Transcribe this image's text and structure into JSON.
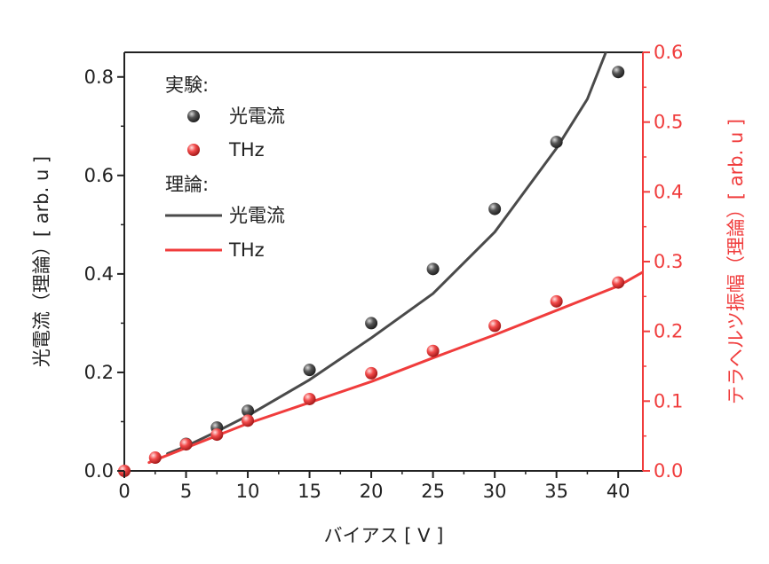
{
  "chart_data": {
    "type": "scatter+line",
    "x_axis": {
      "label": "バイアス [ V ]",
      "range": [
        0,
        42
      ],
      "ticks": [
        0,
        5,
        10,
        15,
        20,
        25,
        30,
        35,
        40
      ],
      "tick_labels": [
        "0",
        "5",
        "10",
        "15",
        "20",
        "25",
        "30",
        "35",
        "40"
      ]
    },
    "y_axis_left": {
      "label": "光電流（理論）[ arb. u ]",
      "range": [
        0,
        0.85
      ],
      "ticks": [
        0.0,
        0.2,
        0.4,
        0.6,
        0.8
      ],
      "tick_labels": [
        "0.0",
        "0.2",
        "0.4",
        "0.6",
        "0.8"
      ],
      "color": "#222222"
    },
    "y_axis_right": {
      "label": "テラヘルツ振幅（理論）[ arb. u ]",
      "range": [
        0,
        0.6
      ],
      "ticks": [
        0.0,
        0.1,
        0.2,
        0.3,
        0.4,
        0.5,
        0.6
      ],
      "tick_labels": [
        "0.0",
        "0.1",
        "0.2",
        "0.3",
        "0.4",
        "0.5",
        "0.6"
      ],
      "color": "#f03c3c"
    },
    "legend": {
      "experiment_heading": "実験:",
      "theory_heading": "理論:",
      "items": [
        {
          "label": "光電流",
          "kind": "marker",
          "series": "photocurrent_exp"
        },
        {
          "label": "THz",
          "kind": "marker",
          "series": "thz_exp"
        },
        {
          "label": "光電流",
          "kind": "line",
          "series": "photocurrent_theory"
        },
        {
          "label": "THz",
          "kind": "line",
          "series": "thz_theory"
        }
      ],
      "position": "top-left"
    },
    "series": [
      {
        "name": "光電流 (実験)",
        "id": "photocurrent_exp",
        "axis": "left",
        "kind": "marker",
        "color": "#4a4a4a",
        "x": [
          5,
          7.5,
          10,
          15,
          20,
          25,
          30,
          35,
          40
        ],
        "y": [
          0.055,
          0.088,
          0.122,
          0.205,
          0.3,
          0.41,
          0.532,
          0.668,
          0.81
        ]
      },
      {
        "name": "THz (実験)",
        "id": "thz_exp",
        "axis": "right",
        "kind": "marker",
        "color": "#f03c3c",
        "x": [
          0,
          2.5,
          5,
          7.5,
          10,
          15,
          20,
          25,
          30,
          35,
          40
        ],
        "y": [
          0.0,
          0.019,
          0.038,
          0.052,
          0.072,
          0.103,
          0.14,
          0.172,
          0.208,
          0.243,
          0.27
        ]
      },
      {
        "name": "光電流 (理論)",
        "id": "photocurrent_theory",
        "axis": "left",
        "kind": "line",
        "color": "#4a4a4a",
        "x": [
          3.5,
          5,
          7.5,
          10,
          15,
          20,
          25,
          30,
          35,
          37.5,
          39
        ],
        "y": [
          0.035,
          0.05,
          0.08,
          0.112,
          0.185,
          0.27,
          0.36,
          0.485,
          0.655,
          0.755,
          0.85
        ]
      },
      {
        "name": "THz (理論)",
        "id": "thz_theory",
        "axis": "right",
        "kind": "line",
        "color": "#f03c3c",
        "x": [
          2,
          5,
          10,
          15,
          20,
          25,
          30,
          35,
          40,
          42
        ],
        "y": [
          0.012,
          0.033,
          0.068,
          0.098,
          0.128,
          0.162,
          0.195,
          0.23,
          0.265,
          0.285
        ]
      }
    ]
  }
}
